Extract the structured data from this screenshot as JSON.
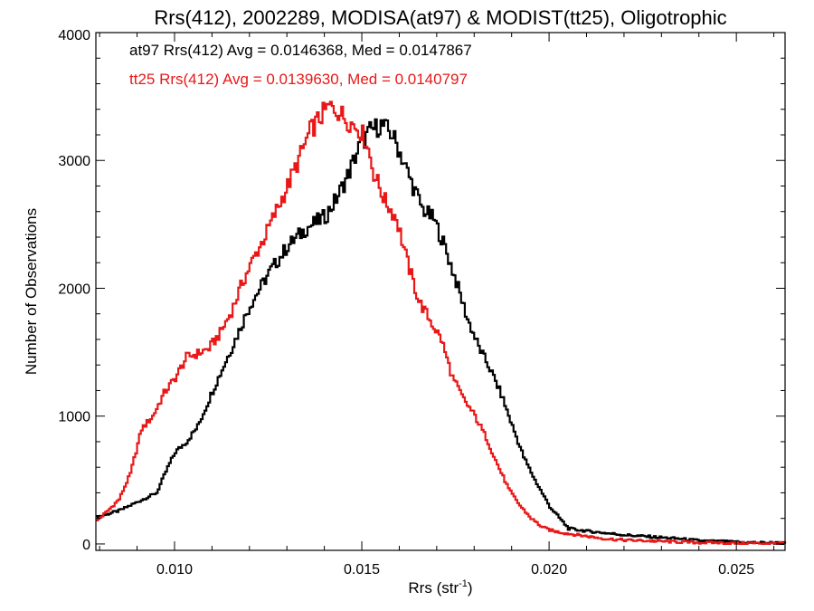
{
  "chart_data": {
    "type": "histogram",
    "title": "Rrs(412), 2002289, MODISA(at97) & MODIST(tt25), Oligotrophic",
    "xlabel_main": "Rrs (str",
    "xlabel_sup": "-1",
    "xlabel_end": ")",
    "ylabel": "Number of Observations",
    "xlim": [
      0.0079,
      0.0263
    ],
    "ylim": [
      -50,
      4000
    ],
    "xticks": [
      {
        "value": 0.01,
        "label": "0.010"
      },
      {
        "value": 0.015,
        "label": "0.015"
      },
      {
        "value": 0.02,
        "label": "0.020"
      },
      {
        "value": 0.025,
        "label": "0.025"
      }
    ],
    "yticks": [
      {
        "value": 0,
        "label": "0"
      },
      {
        "value": 1000,
        "label": "1000"
      },
      {
        "value": 2000,
        "label": "2000"
      },
      {
        "value": 3000,
        "label": "3000"
      },
      {
        "value": 4000,
        "label": "4000"
      }
    ],
    "grid": false,
    "legend_position": "top-left",
    "series": [
      {
        "name": "at97",
        "legend_text": "at97 Rrs(412) Avg = 0.0146368, Med = 0.0147867",
        "color": "#000000",
        "x": [
          0.0079,
          0.0085,
          0.009,
          0.0095,
          0.0098,
          0.01,
          0.0103,
          0.0106,
          0.011,
          0.0115,
          0.012,
          0.0125,
          0.013,
          0.0135,
          0.014,
          0.0143,
          0.0146,
          0.0149,
          0.0152,
          0.0155,
          0.0158,
          0.016,
          0.0163,
          0.0166,
          0.0169,
          0.0172,
          0.0175,
          0.0178,
          0.0181,
          0.0184,
          0.0187,
          0.019,
          0.0193,
          0.0196,
          0.02,
          0.0205,
          0.021,
          0.0215,
          0.022,
          0.0225,
          0.023,
          0.0235,
          0.024,
          0.0245,
          0.025,
          0.0255,
          0.026,
          0.0263
        ],
        "y": [
          210,
          260,
          330,
          400,
          600,
          720,
          800,
          920,
          1200,
          1530,
          1870,
          2120,
          2330,
          2470,
          2560,
          2700,
          2880,
          3100,
          3230,
          3280,
          3200,
          3060,
          2830,
          2620,
          2540,
          2320,
          2050,
          1760,
          1540,
          1370,
          1170,
          920,
          680,
          500,
          290,
          120,
          100,
          85,
          70,
          60,
          50,
          40,
          25,
          20,
          15,
          10,
          10,
          5
        ]
      },
      {
        "name": "tt25",
        "legend_text": "tt25 Rrs(412) Avg = 0.0139630, Med = 0.0140797",
        "color": "#e81818",
        "x": [
          0.0079,
          0.0082,
          0.0085,
          0.0088,
          0.0091,
          0.0094,
          0.0097,
          0.01,
          0.0103,
          0.0106,
          0.0109,
          0.0112,
          0.0115,
          0.0118,
          0.0121,
          0.0124,
          0.0127,
          0.013,
          0.0133,
          0.0136,
          0.0139,
          0.0141,
          0.0143,
          0.0145,
          0.0147,
          0.0149,
          0.0151,
          0.0153,
          0.0156,
          0.0159,
          0.0162,
          0.0165,
          0.0168,
          0.0171,
          0.0174,
          0.0177,
          0.018,
          0.0183,
          0.0186,
          0.0189,
          0.0192,
          0.0195,
          0.0198,
          0.0201,
          0.0205,
          0.021,
          0.0215,
          0.022,
          0.0225,
          0.023,
          0.0235,
          0.024,
          0.0245,
          0.025,
          0.0255,
          0.026,
          0.0263
        ],
        "y": [
          180,
          260,
          350,
          550,
          900,
          1000,
          1180,
          1300,
          1460,
          1490,
          1530,
          1650,
          1820,
          2050,
          2240,
          2410,
          2610,
          2800,
          3010,
          3230,
          3350,
          3420,
          3400,
          3340,
          3290,
          3250,
          3150,
          2900,
          2680,
          2550,
          2200,
          1900,
          1750,
          1600,
          1300,
          1130,
          1000,
          830,
          620,
          430,
          300,
          200,
          130,
          100,
          80,
          60,
          40,
          30,
          25,
          20,
          15,
          10,
          10,
          5,
          5,
          5,
          5
        ]
      }
    ]
  }
}
